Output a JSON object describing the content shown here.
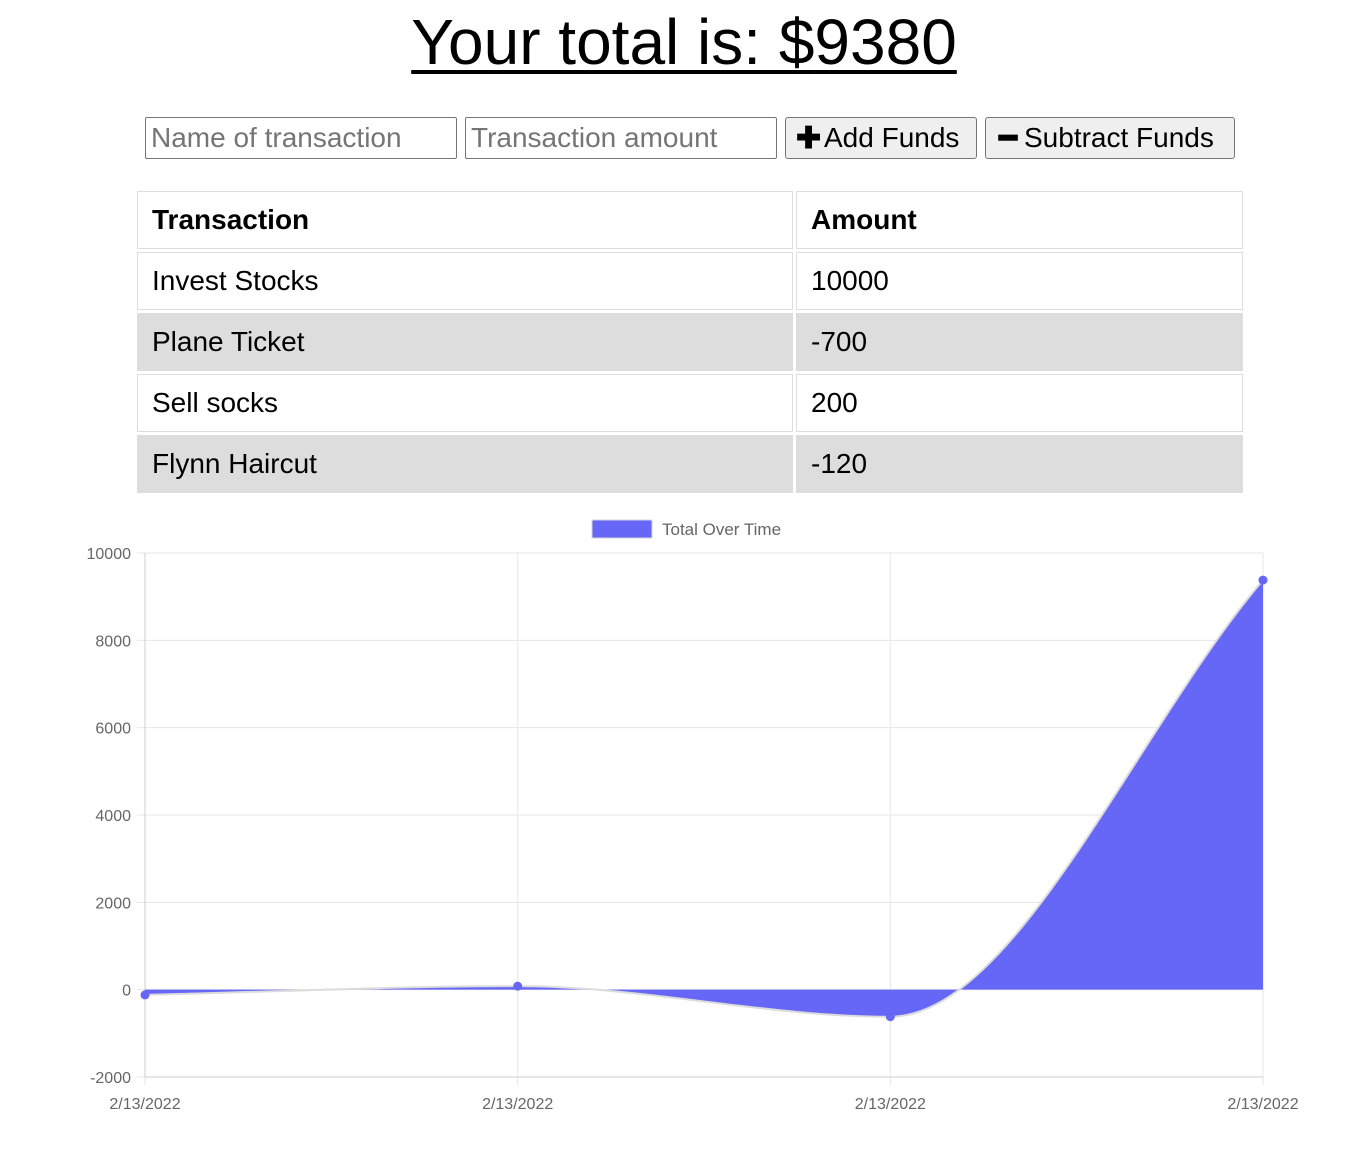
{
  "header": {
    "total_label": "Your total is: $",
    "total_value": "9380"
  },
  "form": {
    "name_placeholder": "Name of transaction",
    "amount_placeholder": "Transaction amount",
    "add_label": "Add Funds",
    "subtract_label": "Subtract Funds"
  },
  "table": {
    "headers": [
      "Transaction",
      "Amount"
    ],
    "rows": [
      {
        "name": "Invest Stocks",
        "amount": "10000"
      },
      {
        "name": "Plane Ticket",
        "amount": "-700"
      },
      {
        "name": "Sell socks",
        "amount": "200"
      },
      {
        "name": "Flynn Haircut",
        "amount": "-120"
      }
    ]
  },
  "chart_data": {
    "type": "line",
    "fill": true,
    "x": [
      "2/13/2022",
      "2/13/2022",
      "2/13/2022",
      "2/13/2022"
    ],
    "series": [
      {
        "name": "Total Over Time",
        "values": [
          -120,
          80,
          -620,
          9380
        ]
      }
    ],
    "yticks": [
      10000,
      8000,
      6000,
      4000,
      2000,
      0,
      -2000
    ],
    "ylim": [
      -2000,
      10000
    ],
    "legend": "top",
    "grid": true,
    "colors": {
      "fill": "#6666f7",
      "border": "#dcdcdc",
      "point": "#6666f7",
      "grid": "#e6e6e6",
      "tick": "#666666"
    }
  }
}
